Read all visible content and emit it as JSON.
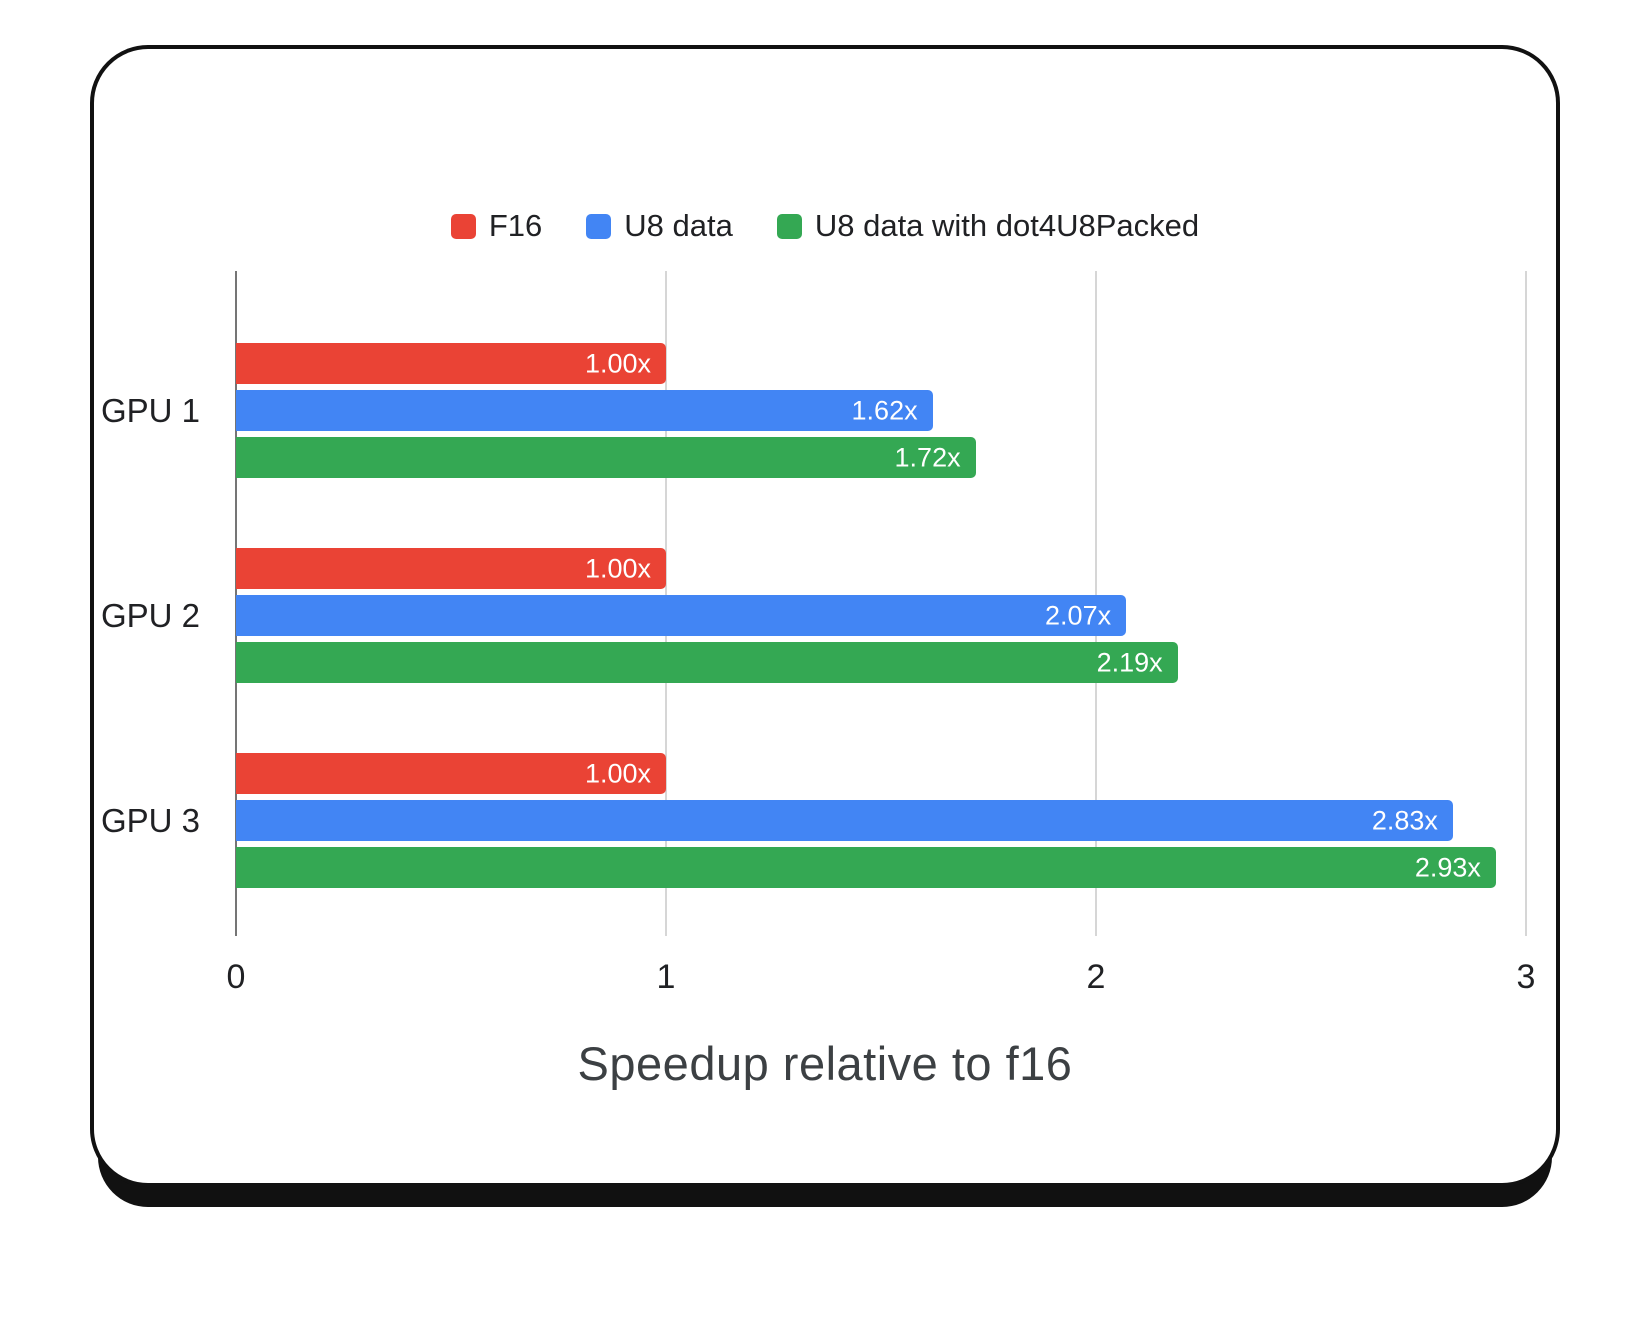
{
  "chart_data": {
    "type": "bar",
    "orientation": "horizontal",
    "title": "",
    "xlabel": "Speedup relative to f16",
    "ylabel": "",
    "xlim": [
      0,
      3
    ],
    "x_ticks": [
      0,
      1,
      2,
      3
    ],
    "grid": true,
    "legend_position": "top",
    "categories": [
      "GPU 1",
      "GPU 2",
      "GPU 3"
    ],
    "series": [
      {
        "name": "F16",
        "color": "#ea4335",
        "values": [
          1.0,
          1.0,
          1.0
        ],
        "value_labels": [
          "1.00x",
          "1.00x",
          "1.00x"
        ]
      },
      {
        "name": "U8 data",
        "color": "#4285f4",
        "values": [
          1.62,
          2.07,
          2.83
        ],
        "value_labels": [
          "1.62x",
          "2.07x",
          "2.83x"
        ]
      },
      {
        "name": "U8 data with dot4U8Packed",
        "color": "#34a853",
        "values": [
          1.72,
          2.19,
          2.93
        ],
        "value_labels": [
          "1.72x",
          "2.19x",
          "2.93x"
        ]
      }
    ],
    "colors": {
      "baseline": "#757575",
      "gridline": "#d6d6d6",
      "bar_label_text": "#ffffff",
      "axis_text": "#202124",
      "axis_title_text": "#3c4043",
      "card_border": "#111111"
    }
  }
}
